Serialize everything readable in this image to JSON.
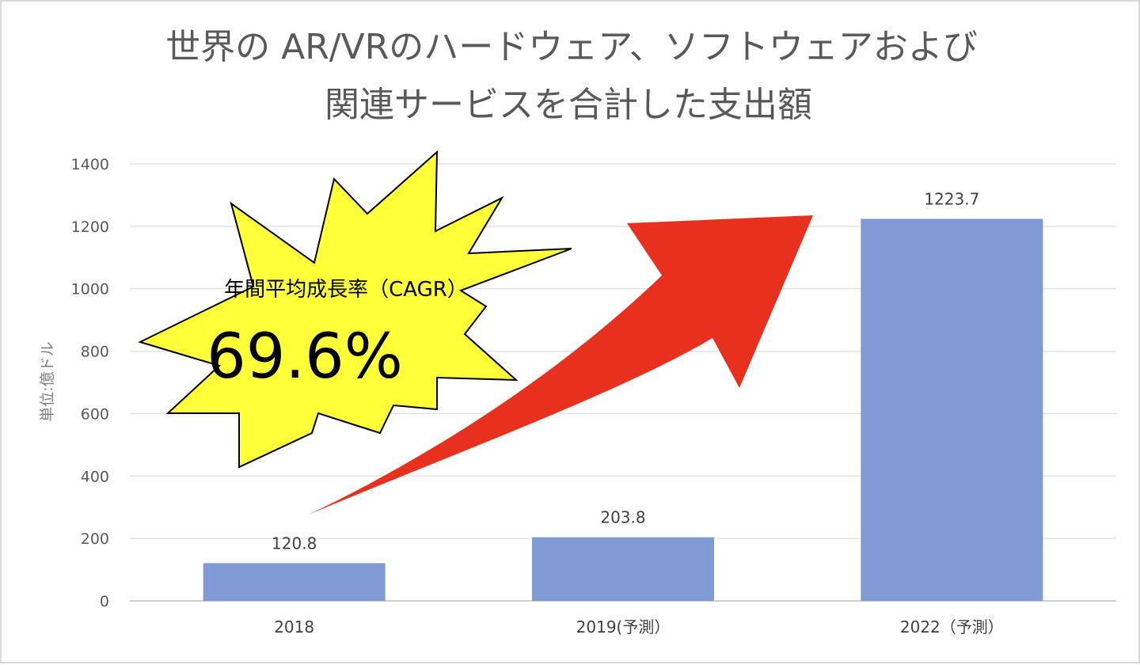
{
  "chart_data": {
    "type": "bar",
    "title": [
      "世界の AR/VRのハードウェア、ソフトウェアおよび",
      "関連サービスを合計した支出額"
    ],
    "ylabel": "単位:億ドル",
    "categories": [
      "2018",
      "2019(予測）",
      "2022（予測）"
    ],
    "values": [
      120.8,
      203.8,
      1223.7
    ],
    "value_labels": [
      "120.8",
      "203.8",
      "1223.7"
    ],
    "ylim": [
      0,
      1400
    ],
    "yticks": [
      0,
      200,
      400,
      600,
      800,
      1000,
      1200,
      1400
    ],
    "grid": true,
    "bar_color": "#7f9ad4",
    "gridline_color": "#e3e3e3",
    "annotation": {
      "label": "年間平均成長率（CAGR）",
      "value": "69.6%",
      "burst_fill": "#ffff3a",
      "arrow_color": "#e8301e"
    }
  }
}
